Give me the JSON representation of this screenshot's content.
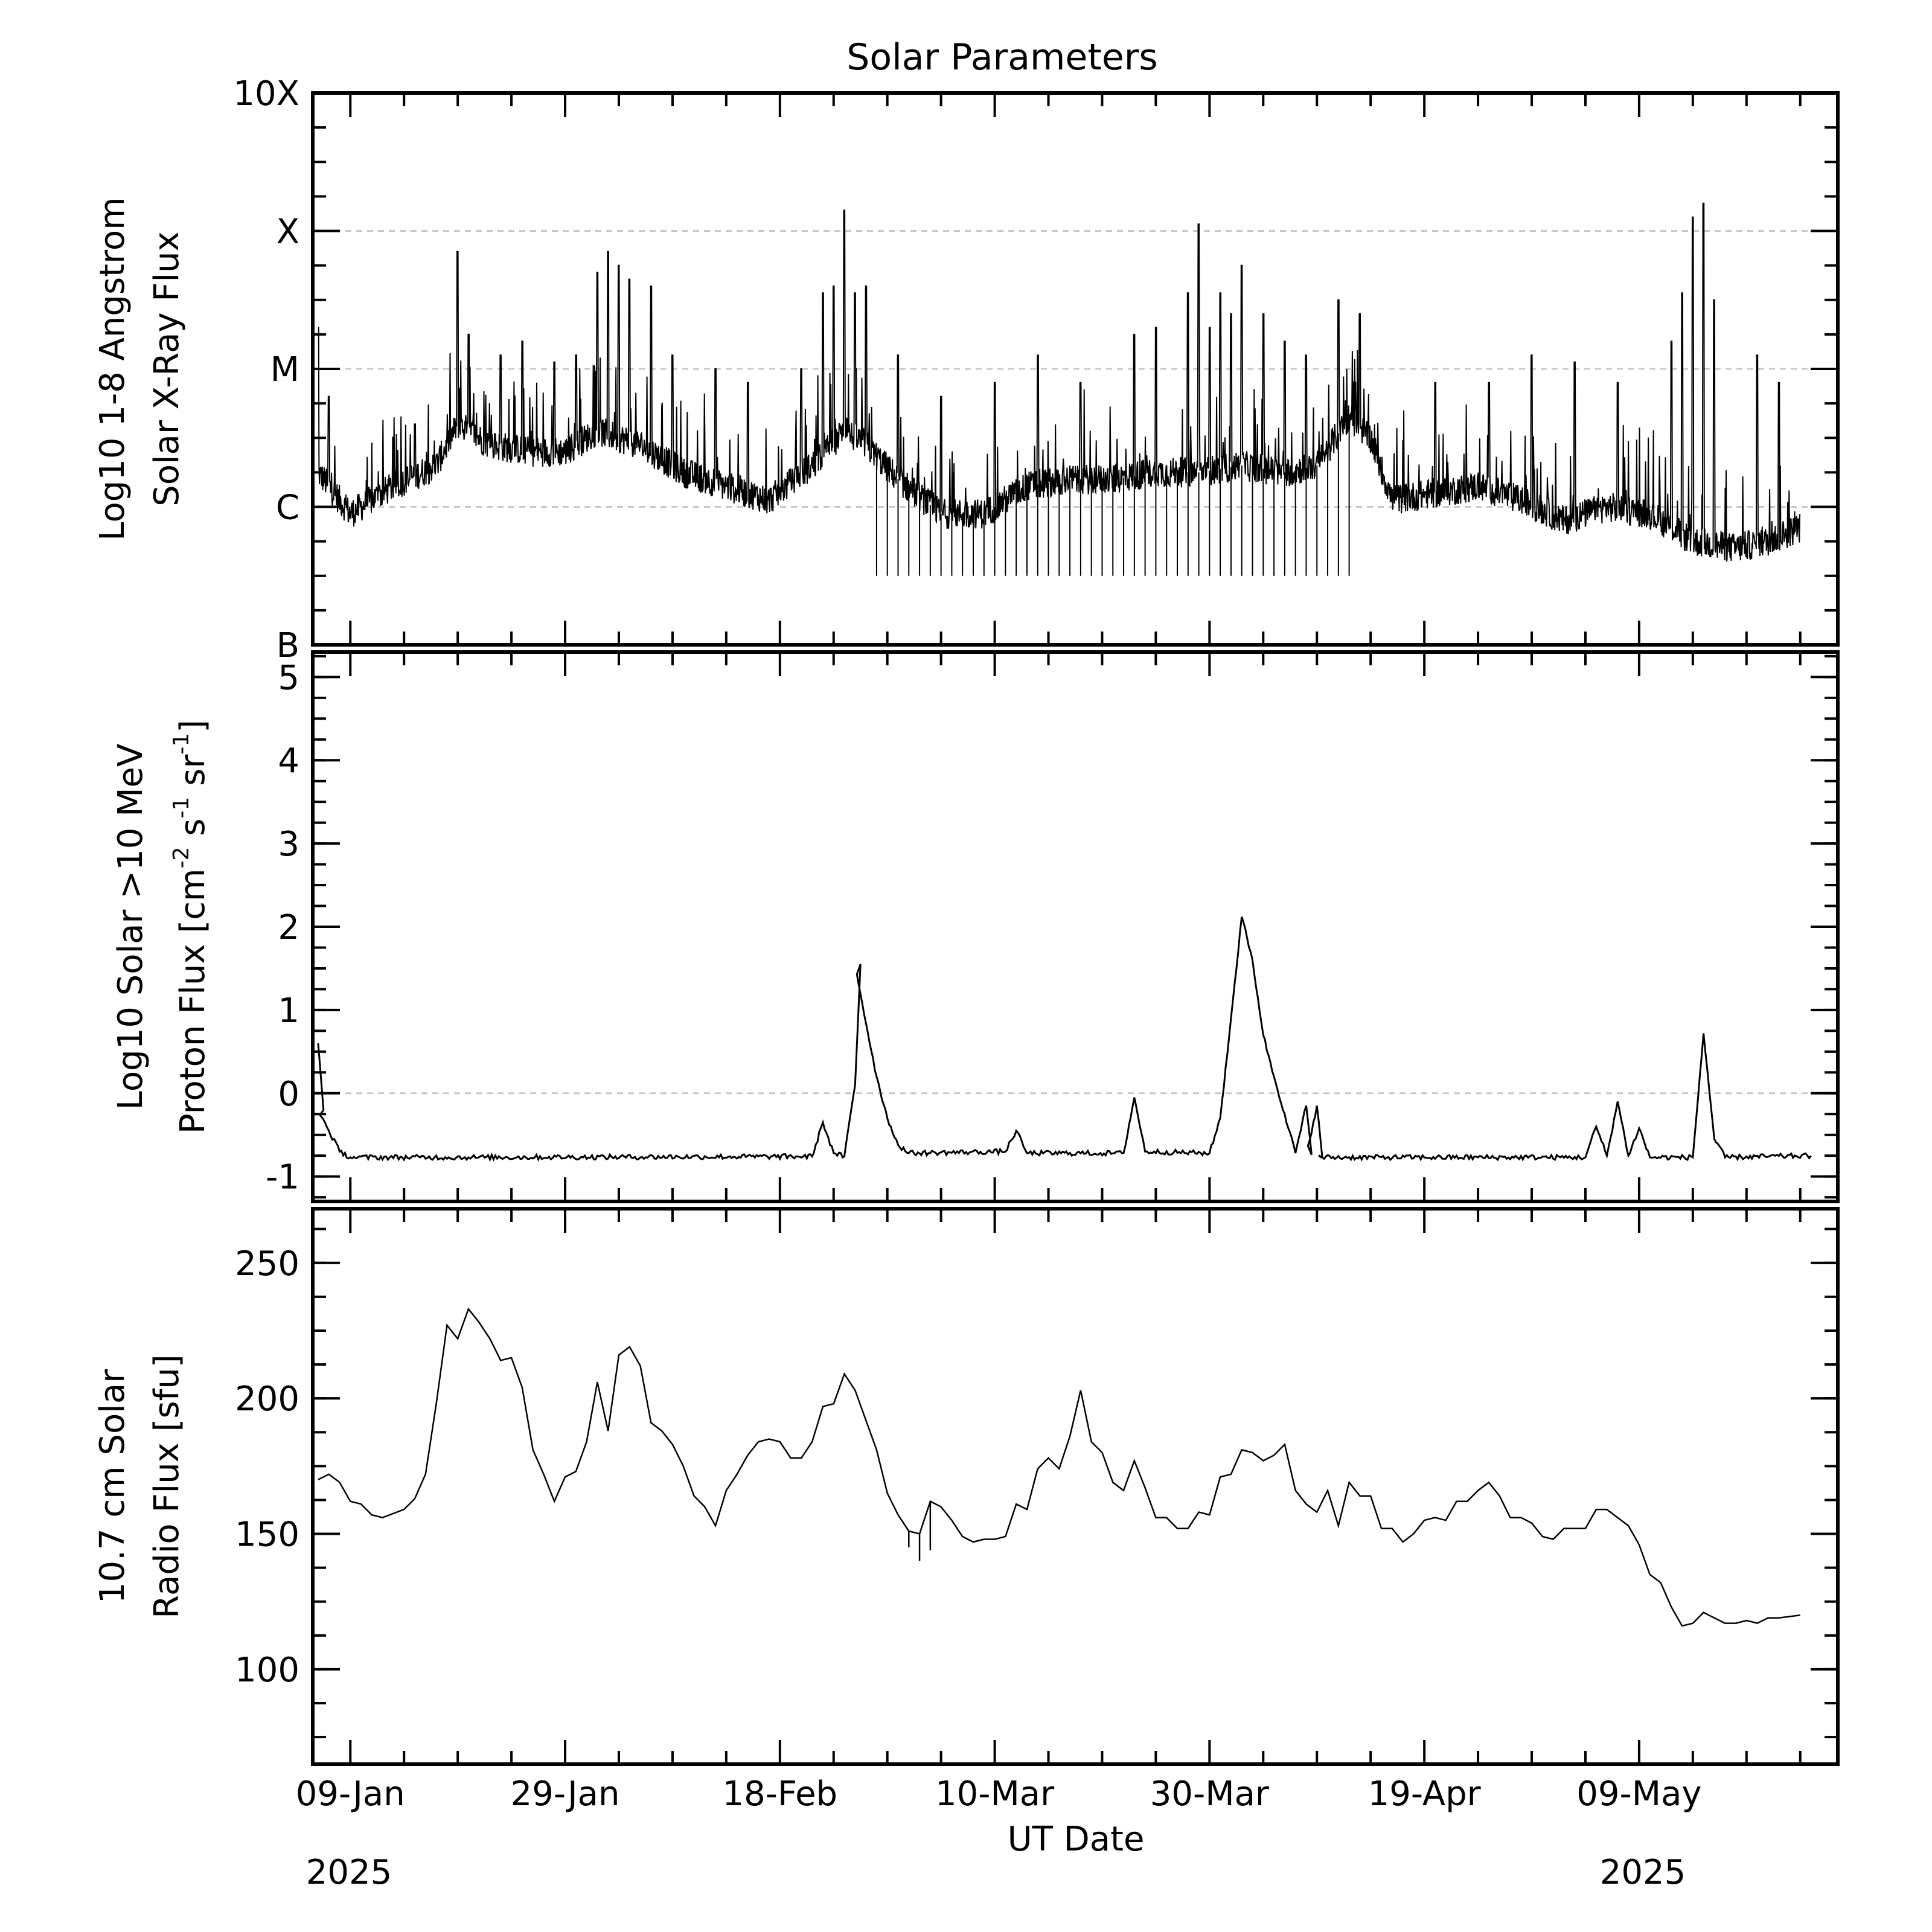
{
  "title": "Solar Parameters",
  "x_axis": {
    "label": "UT Date",
    "ticks": [
      "09-Jan",
      "29-Jan",
      "18-Feb",
      "10-Mar",
      "30-Mar",
      "19-Apr",
      "09-May"
    ],
    "year_left": "2025",
    "year_right": "2025"
  },
  "chart_data": [
    {
      "type": "line",
      "panel": "xray",
      "ylabel_line1": "Log10 1-8 Angstrom",
      "ylabel_line2": "Solar X-Ray Flux",
      "yticks": [
        "B",
        "C",
        "M",
        "X",
        "10X"
      ],
      "ylim": [
        -7,
        -3
      ],
      "reference_lines": [
        -6,
        -5,
        -4
      ],
      "baseline": [
        [
          "2025-01-06",
          -5.75
        ],
        [
          "2025-01-09",
          -6.05
        ],
        [
          "2025-01-13",
          -5.85
        ],
        [
          "2025-01-17",
          -5.7
        ],
        [
          "2025-01-19",
          -5.4
        ],
        [
          "2025-01-22",
          -5.55
        ],
        [
          "2025-01-26",
          -5.6
        ],
        [
          "2025-01-29",
          -5.6
        ],
        [
          "2025-02-01",
          -5.45
        ],
        [
          "2025-02-05",
          -5.55
        ],
        [
          "2025-02-09",
          -5.75
        ],
        [
          "2025-02-13",
          -5.85
        ],
        [
          "2025-02-17",
          -5.95
        ],
        [
          "2025-02-21",
          -5.7
        ],
        [
          "2025-02-24",
          -5.45
        ],
        [
          "2025-02-26",
          -5.55
        ],
        [
          "2025-03-01",
          -5.8
        ],
        [
          "2025-03-05",
          -6.05
        ],
        [
          "2025-03-09",
          -6.05
        ],
        [
          "2025-03-13",
          -5.85
        ],
        [
          "2025-03-17",
          -5.8
        ],
        [
          "2025-03-21",
          -5.8
        ],
        [
          "2025-03-25",
          -5.75
        ],
        [
          "2025-03-29",
          -5.75
        ],
        [
          "2025-04-02",
          -5.7
        ],
        [
          "2025-04-06",
          -5.75
        ],
        [
          "2025-04-09",
          -5.7
        ],
        [
          "2025-04-12",
          -5.35
        ],
        [
          "2025-04-14",
          -5.5
        ],
        [
          "2025-04-16",
          -5.95
        ],
        [
          "2025-04-20",
          -5.9
        ],
        [
          "2025-04-24",
          -5.85
        ],
        [
          "2025-04-28",
          -5.95
        ],
        [
          "2025-05-02",
          -6.1
        ],
        [
          "2025-05-06",
          -6.0
        ],
        [
          "2025-05-10",
          -6.05
        ],
        [
          "2025-05-14",
          -6.25
        ],
        [
          "2025-05-18",
          -6.3
        ],
        [
          "2025-05-21",
          -6.25
        ],
        [
          "2025-05-24",
          -6.15
        ]
      ],
      "flares": [
        [
          "2025-01-06",
          -4.7
        ],
        [
          "2025-01-07",
          -5.2
        ],
        [
          "2025-01-15",
          -5.4
        ],
        [
          "2025-01-19",
          -4.15
        ],
        [
          "2025-01-20",
          -4.75
        ],
        [
          "2025-01-23",
          -4.9
        ],
        [
          "2025-01-25",
          -4.8
        ],
        [
          "2025-01-28",
          -4.95
        ],
        [
          "2025-01-30",
          -4.9
        ],
        [
          "2025-02-01",
          -4.3
        ],
        [
          "2025-02-02",
          -4.15
        ],
        [
          "2025-02-03",
          -4.25
        ],
        [
          "2025-02-04",
          -4.35
        ],
        [
          "2025-02-06",
          -4.4
        ],
        [
          "2025-02-08",
          -4.9
        ],
        [
          "2025-02-12",
          -5.0
        ],
        [
          "2025-02-15",
          -5.1
        ],
        [
          "2025-02-20",
          -5.0
        ],
        [
          "2025-02-22",
          -4.45
        ],
        [
          "2025-02-23",
          -4.4
        ],
        [
          "2025-02-24",
          -3.85
        ],
        [
          "2025-02-25",
          -4.45
        ],
        [
          "2025-02-26",
          -4.4
        ],
        [
          "2025-03-01",
          -4.9
        ],
        [
          "2025-03-05",
          -5.2
        ],
        [
          "2025-03-10",
          -5.1
        ],
        [
          "2025-03-14",
          -4.9
        ],
        [
          "2025-03-18",
          -5.1
        ],
        [
          "2025-03-23",
          -4.75
        ],
        [
          "2025-03-25",
          -4.7
        ],
        [
          "2025-03-28",
          -4.45
        ],
        [
          "2025-03-29",
          -3.95
        ],
        [
          "2025-03-30",
          -4.7
        ],
        [
          "2025-03-31",
          -4.45
        ],
        [
          "2025-04-01",
          -4.6
        ],
        [
          "2025-04-02",
          -4.25
        ],
        [
          "2025-04-04",
          -4.6
        ],
        [
          "2025-04-06",
          -4.8
        ],
        [
          "2025-04-08",
          -4.9
        ],
        [
          "2025-04-11",
          -4.5
        ],
        [
          "2025-04-13",
          -4.6
        ],
        [
          "2025-04-20",
          -5.1
        ],
        [
          "2025-04-25",
          -5.1
        ],
        [
          "2025-04-29",
          -4.9
        ],
        [
          "2025-05-03",
          -4.95
        ],
        [
          "2025-05-07",
          -5.1
        ],
        [
          "2025-05-12",
          -4.8
        ],
        [
          "2025-05-13",
          -4.45
        ],
        [
          "2025-05-14",
          -3.9
        ],
        [
          "2025-05-15",
          -3.8
        ],
        [
          "2025-05-16",
          -4.5
        ],
        [
          "2025-05-20",
          -4.9
        ],
        [
          "2025-05-22",
          -5.1
        ]
      ],
      "data_dropouts": {
        "start": "2025-02-27",
        "end": "2025-04-12",
        "value": -6.5,
        "count": 45
      }
    },
    {
      "type": "line",
      "panel": "proton",
      "ylabel_line1": "Log10 Solar >10 MeV",
      "ylabel_line2": "Proton Flux [cm",
      "ylabel_units": [
        "-2",
        " s",
        "-1",
        " sr",
        "-1",
        "]"
      ],
      "yticks": [
        "-1",
        "0",
        "1",
        "2",
        "3",
        "4",
        "5"
      ],
      "ylim": [
        -1.3,
        5.3
      ],
      "reference_lines": [
        0
      ],
      "points": [
        [
          "2025-01-06",
          0.6
        ],
        [
          "2025-01-06",
          -0.2
        ],
        [
          "2025-01-07",
          -0.45
        ],
        [
          "2025-01-08",
          -0.7
        ],
        [
          "2025-01-09",
          -0.77
        ],
        [
          "2025-01-20",
          -0.77
        ],
        [
          "2025-02-21",
          -0.76
        ],
        [
          "2025-02-22",
          -0.35
        ],
        [
          "2025-02-23",
          -0.72
        ],
        [
          "2025-02-24",
          -0.76
        ],
        [
          "2025-02-25",
          0.1
        ],
        [
          "2025-02-25",
          1.55
        ],
        [
          "2025-02-26",
          0.85
        ],
        [
          "2025-02-27",
          0.2
        ],
        [
          "2025-02-28",
          -0.3
        ],
        [
          "2025-03-01",
          -0.62
        ],
        [
          "2025-03-02",
          -0.72
        ],
        [
          "2025-03-11",
          -0.7
        ],
        [
          "2025-03-12",
          -0.45
        ],
        [
          "2025-03-13",
          -0.72
        ],
        [
          "2025-03-22",
          -0.72
        ],
        [
          "2025-03-23",
          -0.05
        ],
        [
          "2025-03-24",
          -0.7
        ],
        [
          "2025-03-30",
          -0.72
        ],
        [
          "2025-03-31",
          -0.3
        ],
        [
          "2025-04-01",
          0.9
        ],
        [
          "2025-04-02",
          2.12
        ],
        [
          "2025-04-03",
          1.6
        ],
        [
          "2025-04-04",
          0.7
        ],
        [
          "2025-04-05",
          0.2
        ],
        [
          "2025-04-06",
          -0.25
        ],
        [
          "2025-04-07",
          -0.72
        ],
        [
          "2025-04-08",
          -0.15
        ],
        [
          "2025-04-08",
          -0.74
        ],
        [
          "2025-04-09",
          -0.15
        ],
        [
          "2025-04-09",
          -0.77
        ],
        [
          "2025-05-04",
          -0.77
        ],
        [
          "2025-05-05",
          -0.4
        ],
        [
          "2025-05-06",
          -0.75
        ],
        [
          "2025-05-07",
          -0.1
        ],
        [
          "2025-05-08",
          -0.75
        ],
        [
          "2025-05-09",
          -0.42
        ],
        [
          "2025-05-10",
          -0.77
        ],
        [
          "2025-05-14",
          -0.77
        ],
        [
          "2025-05-15",
          0.72
        ],
        [
          "2025-05-16",
          -0.55
        ],
        [
          "2025-05-17",
          -0.77
        ],
        [
          "2025-05-25",
          -0.75
        ]
      ]
    },
    {
      "type": "line",
      "panel": "radio",
      "ylabel_line1": "10.7 cm Solar",
      "ylabel_line2": "Radio Flux [sfu]",
      "yticks": [
        "100",
        "150",
        "200",
        "250"
      ],
      "ylim": [
        65,
        270
      ],
      "points": [
        [
          "2025-01-06",
          170
        ],
        [
          "2025-01-07",
          172
        ],
        [
          "2025-01-08",
          169
        ],
        [
          "2025-01-09",
          162
        ],
        [
          "2025-01-10",
          161
        ],
        [
          "2025-01-11",
          157
        ],
        [
          "2025-01-12",
          156
        ],
        [
          "2025-01-14",
          159
        ],
        [
          "2025-01-15",
          163
        ],
        [
          "2025-01-16",
          172
        ],
        [
          "2025-01-17",
          198
        ],
        [
          "2025-01-18",
          227
        ],
        [
          "2025-01-19",
          222
        ],
        [
          "2025-01-20",
          233
        ],
        [
          "2025-01-21",
          228
        ],
        [
          "2025-01-22",
          222
        ],
        [
          "2025-01-23",
          214
        ],
        [
          "2025-01-24",
          215
        ],
        [
          "2025-01-25",
          204
        ],
        [
          "2025-01-26",
          181
        ],
        [
          "2025-01-27",
          172
        ],
        [
          "2025-01-28",
          162
        ],
        [
          "2025-01-29",
          171
        ],
        [
          "2025-01-30",
          173
        ],
        [
          "2025-01-31",
          184
        ],
        [
          "2025-02-01",
          206
        ],
        [
          "2025-02-02",
          188
        ],
        [
          "2025-02-03",
          216
        ],
        [
          "2025-02-04",
          219
        ],
        [
          "2025-02-05",
          212
        ],
        [
          "2025-02-06",
          191
        ],
        [
          "2025-02-07",
          188
        ],
        [
          "2025-02-08",
          183
        ],
        [
          "2025-02-09",
          175
        ],
        [
          "2025-02-10",
          164
        ],
        [
          "2025-02-11",
          160
        ],
        [
          "2025-02-12",
          153
        ],
        [
          "2025-02-13",
          166
        ],
        [
          "2025-02-14",
          172
        ],
        [
          "2025-02-15",
          179
        ],
        [
          "2025-02-16",
          184
        ],
        [
          "2025-02-17",
          185
        ],
        [
          "2025-02-18",
          184
        ],
        [
          "2025-02-19",
          178
        ],
        [
          "2025-02-20",
          178
        ],
        [
          "2025-02-21",
          184
        ],
        [
          "2025-02-22",
          197
        ],
        [
          "2025-02-23",
          198
        ],
        [
          "2025-02-24",
          209
        ],
        [
          "2025-02-25",
          203
        ],
        [
          "2025-02-26",
          192
        ],
        [
          "2025-02-27",
          181
        ],
        [
          "2025-02-28",
          165
        ],
        [
          "2025-03-01",
          157
        ],
        [
          "2025-03-02",
          151
        ],
        [
          "2025-03-03",
          150
        ],
        [
          "2025-03-04",
          162
        ],
        [
          "2025-03-05",
          160
        ],
        [
          "2025-03-06",
          155
        ],
        [
          "2025-03-07",
          149
        ],
        [
          "2025-03-08",
          147
        ],
        [
          "2025-03-09",
          148
        ],
        [
          "2025-03-10",
          148
        ],
        [
          "2025-03-11",
          149
        ],
        [
          "2025-03-12",
          161
        ],
        [
          "2025-03-13",
          159
        ],
        [
          "2025-03-14",
          174
        ],
        [
          "2025-03-15",
          178
        ],
        [
          "2025-03-16",
          174
        ],
        [
          "2025-03-17",
          186
        ],
        [
          "2025-03-18",
          203
        ],
        [
          "2025-03-19",
          184
        ],
        [
          "2025-03-20",
          180
        ],
        [
          "2025-03-21",
          169
        ],
        [
          "2025-03-22",
          166
        ],
        [
          "2025-03-23",
          177
        ],
        [
          "2025-03-24",
          167
        ],
        [
          "2025-03-25",
          156
        ],
        [
          "2025-03-26",
          156
        ],
        [
          "2025-03-27",
          152
        ],
        [
          "2025-03-28",
          152
        ],
        [
          "2025-03-29",
          158
        ],
        [
          "2025-03-30",
          157
        ],
        [
          "2025-03-31",
          171
        ],
        [
          "2025-04-01",
          172
        ],
        [
          "2025-04-02",
          181
        ],
        [
          "2025-04-03",
          180
        ],
        [
          "2025-04-04",
          177
        ],
        [
          "2025-04-05",
          179
        ],
        [
          "2025-04-06",
          183
        ],
        [
          "2025-04-07",
          166
        ],
        [
          "2025-04-08",
          161
        ],
        [
          "2025-04-09",
          158
        ],
        [
          "2025-04-10",
          166
        ],
        [
          "2025-04-11",
          153
        ],
        [
          "2025-04-12",
          169
        ],
        [
          "2025-04-13",
          164
        ],
        [
          "2025-04-14",
          164
        ],
        [
          "2025-04-15",
          152
        ],
        [
          "2025-04-16",
          152
        ],
        [
          "2025-04-17",
          147
        ],
        [
          "2025-04-18",
          150
        ],
        [
          "2025-04-19",
          155
        ],
        [
          "2025-04-20",
          156
        ],
        [
          "2025-04-21",
          155
        ],
        [
          "2025-04-22",
          162
        ],
        [
          "2025-04-23",
          162
        ],
        [
          "2025-04-24",
          166
        ],
        [
          "2025-04-25",
          169
        ],
        [
          "2025-04-26",
          164
        ],
        [
          "2025-04-27",
          156
        ],
        [
          "2025-04-28",
          156
        ],
        [
          "2025-04-29",
          154
        ],
        [
          "2025-04-30",
          149
        ],
        [
          "2025-05-01",
          148
        ],
        [
          "2025-05-02",
          152
        ],
        [
          "2025-05-03",
          152
        ],
        [
          "2025-05-04",
          152
        ],
        [
          "2025-05-05",
          159
        ],
        [
          "2025-05-06",
          159
        ],
        [
          "2025-05-07",
          156
        ],
        [
          "2025-05-08",
          153
        ],
        [
          "2025-05-09",
          146
        ],
        [
          "2025-05-10",
          135
        ],
        [
          "2025-05-11",
          132
        ],
        [
          "2025-05-12",
          123
        ],
        [
          "2025-05-13",
          116
        ],
        [
          "2025-05-14",
          117
        ],
        [
          "2025-05-15",
          121
        ],
        [
          "2025-05-16",
          119
        ],
        [
          "2025-05-17",
          117
        ],
        [
          "2025-05-18",
          117
        ],
        [
          "2025-05-19",
          118
        ],
        [
          "2025-05-20",
          117
        ],
        [
          "2025-05-21",
          119
        ],
        [
          "2025-05-22",
          119
        ],
        [
          "2025-05-24",
          120
        ]
      ],
      "low_spikes": [
        [
          "2025-03-02",
          145
        ],
        [
          "2025-03-03",
          140
        ],
        [
          "2025-03-04",
          144
        ]
      ]
    }
  ]
}
